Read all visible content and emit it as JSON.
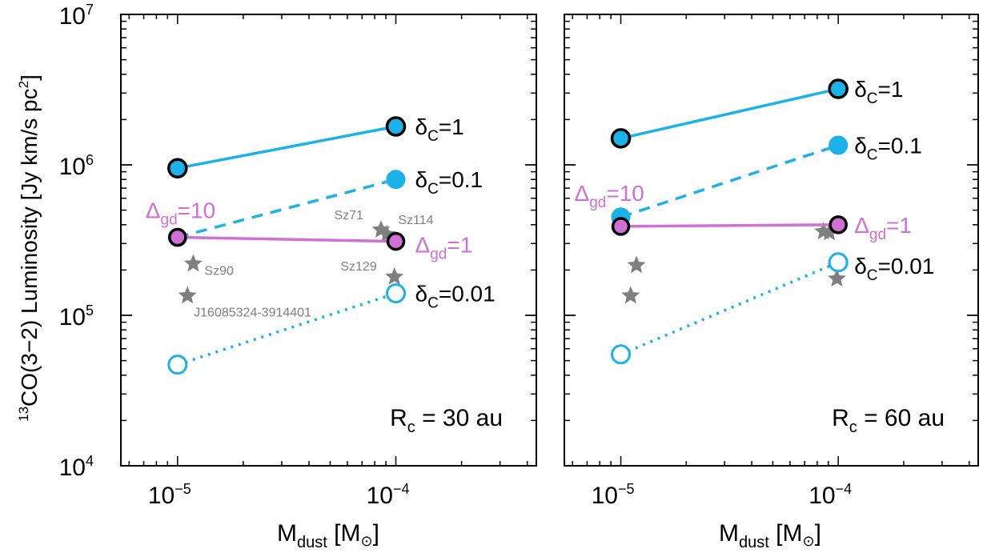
{
  "figure": {
    "ylabel_iso": "13",
    "ylabel_main": "CO(3−2) Luminosity [Jy km/s pc",
    "ylabel_sup": "2",
    "ylabel_end": "]",
    "y_ticks": [
      {
        "base": "10",
        "exp": "4",
        "value": 10000
      },
      {
        "base": "10",
        "exp": "5",
        "value": 100000
      },
      {
        "base": "10",
        "exp": "6",
        "value": 1000000
      },
      {
        "base": "10",
        "exp": "7",
        "value": 10000000
      }
    ],
    "x_ticks": [
      {
        "base": "10",
        "exp": "−5",
        "value": 1e-05
      },
      {
        "base": "10",
        "exp": "−4",
        "value": 0.0001
      }
    ],
    "xlabel_main": "M",
    "xlabel_sub": "dust",
    "xlabel_unit_open": " [M",
    "xlabel_unit_sym": "⊙",
    "xlabel_unit_close": "]"
  },
  "colors": {
    "cyan": "#1ab2e8",
    "magenta": "#d070d4",
    "gray": "#7f7f7f",
    "black": "#000000"
  },
  "chart_data": [
    {
      "type": "line",
      "panel_label": {
        "main": "R",
        "sub": "c",
        "rest": " = 30 au"
      },
      "x_scale": "log",
      "y_scale": "log",
      "xlim": [
        5.5e-06,
        0.00044
      ],
      "ylim": [
        10000,
        10000000
      ],
      "series": [
        {
          "style": "solid",
          "color": "cyan",
          "marker": "filled-outlined",
          "x": [
            1e-05,
            0.0001
          ],
          "y": [
            950000,
            1800000
          ],
          "label": {
            "text": "δ",
            "sub": "C",
            "rest": "=1"
          }
        },
        {
          "style": "dashed",
          "color": "cyan",
          "marker": "filled",
          "x": [
            1e-05,
            0.0001
          ],
          "y": [
            330000,
            800000
          ],
          "label": {
            "text": "δ",
            "sub": "C",
            "rest": "=0.1"
          }
        },
        {
          "style": "dotted",
          "color": "cyan",
          "marker": "open",
          "x": [
            1e-05,
            0.0001
          ],
          "y": [
            47000,
            140000
          ],
          "label": {
            "text": "δ",
            "sub": "C",
            "rest": "=0.01"
          }
        },
        {
          "style": "solid",
          "color": "magenta",
          "marker": "filled-outlined",
          "x": [
            1e-05,
            0.0001
          ],
          "y": [
            330000,
            310000
          ],
          "label": {
            "text": "Δ",
            "sub": "gd",
            "rest": "=1"
          },
          "start_label": {
            "text": "Δ",
            "sub": "gd",
            "rest": "=10"
          }
        }
      ],
      "observed": [
        {
          "name": "Sz90",
          "x": 1.18e-05,
          "y": 220000
        },
        {
          "name": "J16085324-3914401",
          "x": 1.11e-05,
          "y": 135000
        },
        {
          "name": "Sz71",
          "x": 8.55e-05,
          "y": 370000
        },
        {
          "name": "Sz114",
          "x": 9.1e-05,
          "y": 345000
        },
        {
          "name": "Sz129",
          "x": 9.85e-05,
          "y": 180000
        }
      ]
    },
    {
      "type": "line",
      "panel_label": {
        "main": "R",
        "sub": "c",
        "rest": " = 60 au"
      },
      "x_scale": "log",
      "y_scale": "log",
      "xlim": [
        5.5e-06,
        0.00044
      ],
      "ylim": [
        10000,
        10000000
      ],
      "series": [
        {
          "style": "solid",
          "color": "cyan",
          "marker": "filled-outlined",
          "x": [
            1e-05,
            0.0001
          ],
          "y": [
            1500000,
            3200000
          ],
          "label": {
            "text": "δ",
            "sub": "C",
            "rest": "=1"
          }
        },
        {
          "style": "dashed",
          "color": "cyan",
          "marker": "filled",
          "x": [
            1e-05,
            0.0001
          ],
          "y": [
            450000,
            1350000
          ],
          "label": {
            "text": "δ",
            "sub": "C",
            "rest": "=0.1"
          }
        },
        {
          "style": "dotted",
          "color": "cyan",
          "marker": "open",
          "x": [
            1e-05,
            0.0001
          ],
          "y": [
            55000,
            225000
          ],
          "label": {
            "text": "δ",
            "sub": "C",
            "rest": "=0.01"
          }
        },
        {
          "style": "solid",
          "color": "magenta",
          "marker": "filled-outlined",
          "x": [
            1e-05,
            0.0001
          ],
          "y": [
            390000,
            400000
          ],
          "label": {
            "text": "Δ",
            "sub": "gd",
            "rest": "=1"
          },
          "start_label": {
            "text": "Δ",
            "sub": "gd",
            "rest": "=10"
          }
        }
      ],
      "observed": [
        {
          "x": 1.18e-05,
          "y": 215000
        },
        {
          "x": 1.11e-05,
          "y": 135000
        },
        {
          "x": 8.55e-05,
          "y": 360000
        },
        {
          "x": 9.1e-05,
          "y": 355000
        },
        {
          "x": 9.85e-05,
          "y": 175000
        }
      ]
    }
  ]
}
